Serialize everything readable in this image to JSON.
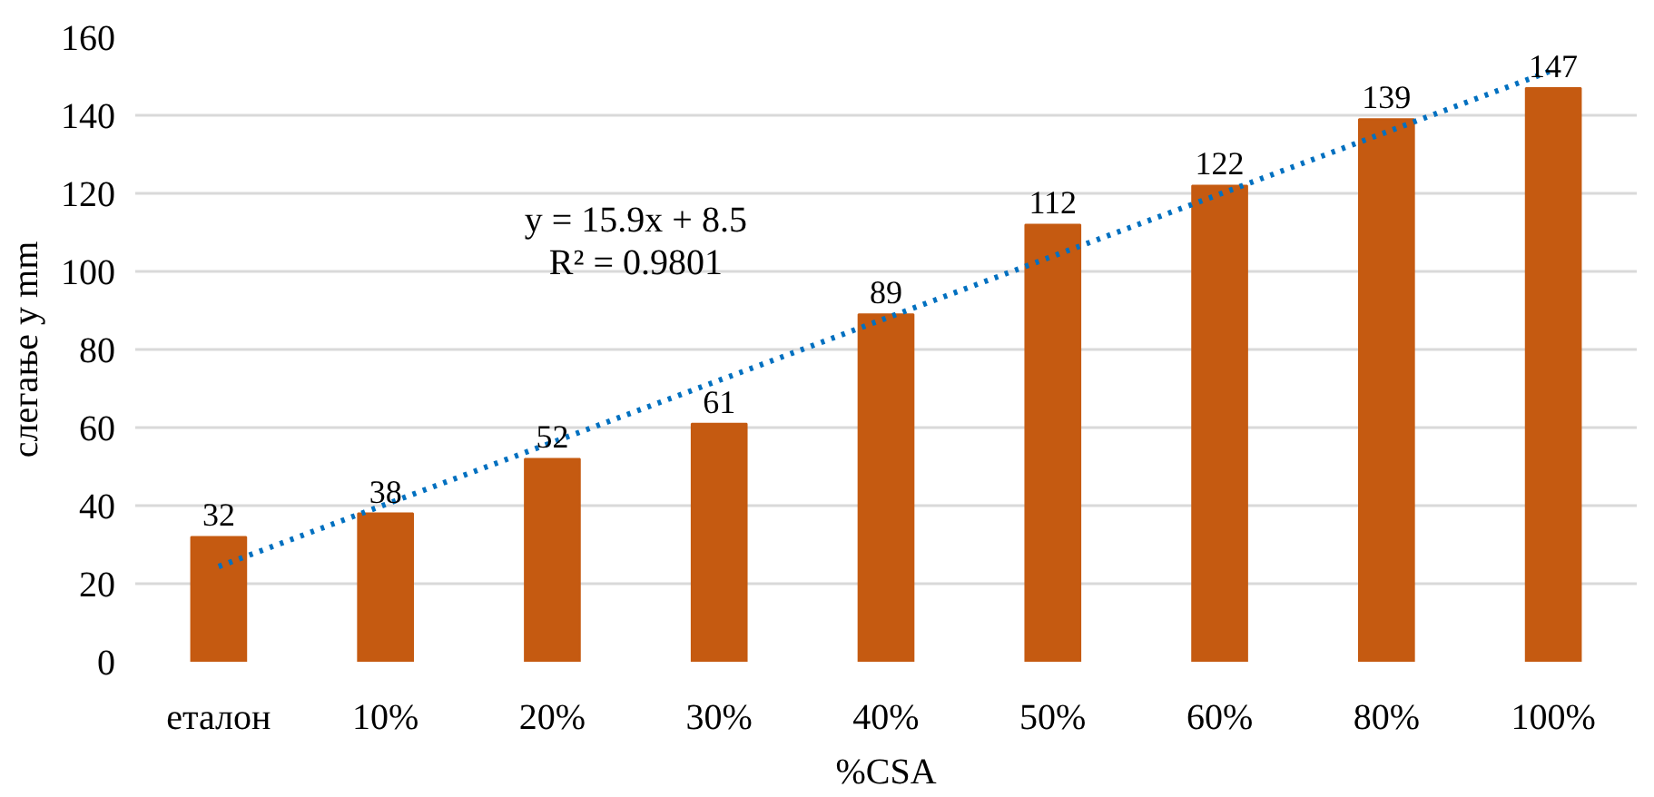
{
  "chart_data": {
    "type": "bar",
    "xlabel": "%CSA",
    "ylabel": "слегање у mm",
    "categories": [
      "еталон",
      "10%",
      "20%",
      "30%",
      "40%",
      "50%",
      "60%",
      "80%",
      "100%"
    ],
    "series": [
      {
        "color": "#c55a11",
        "values": [
          32,
          38,
          52,
          61,
          89,
          112,
          122,
          139,
          147
        ],
        "value_labels": [
          "32",
          "38",
          "52",
          "61",
          "89",
          "112",
          "122",
          "139",
          "147"
        ]
      },
      {
        "type": "line",
        "color": "#0070c0",
        "line_style": "dotted",
        "x": [
          "еталон",
          "100%"
        ],
        "values": [
          24.4,
          151.6
        ]
      }
    ],
    "annotations": [
      "y = 15.9x + 8.5",
      "R² = 0.9801"
    ],
    "ylim": [
      0,
      160
    ],
    "yticks": [
      0,
      20,
      40,
      60,
      80,
      100,
      120,
      140,
      160
    ],
    "grid": "y"
  }
}
